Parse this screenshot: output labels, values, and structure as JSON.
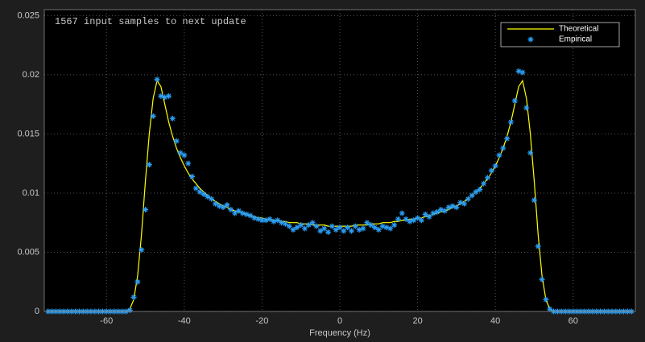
{
  "chart_data": {
    "type": "line",
    "annotation": "1567 input samples to next update",
    "xlabel": "Frequency (Hz)",
    "xlim": [
      -76,
      76
    ],
    "ylim": [
      0,
      0.0255
    ],
    "xticks": [
      -60,
      -40,
      -20,
      0,
      20,
      40,
      60
    ],
    "yticks": [
      0,
      0.005,
      0.01,
      0.015,
      0.02,
      0.025
    ],
    "grid": true,
    "legend": "northeast",
    "x": [
      -75,
      -74,
      -73,
      -72,
      -71,
      -70,
      -69,
      -68,
      -67,
      -66,
      -65,
      -64,
      -63,
      -62,
      -61,
      -60,
      -59,
      -58,
      -57,
      -56,
      -55,
      -54,
      -53,
      -52,
      -51,
      -50,
      -49,
      -48,
      -47,
      -46,
      -45,
      -44,
      -43,
      -42,
      -41,
      -40,
      -39,
      -38,
      -37,
      -36,
      -35,
      -34,
      -33,
      -32,
      -31,
      -30,
      -29,
      -28,
      -27,
      -26,
      -25,
      -24,
      -23,
      -22,
      -21,
      -20,
      -19,
      -18,
      -17,
      -16,
      -15,
      -14,
      -13,
      -12,
      -11,
      -10,
      -9,
      -8,
      -7,
      -6,
      -5,
      -4,
      -3,
      -2,
      -1,
      0,
      1,
      2,
      3,
      4,
      5,
      6,
      7,
      8,
      9,
      10,
      11,
      12,
      13,
      14,
      15,
      16,
      17,
      18,
      19,
      20,
      21,
      22,
      23,
      24,
      25,
      26,
      27,
      28,
      29,
      30,
      31,
      32,
      33,
      34,
      35,
      36,
      37,
      38,
      39,
      40,
      41,
      42,
      43,
      44,
      45,
      46,
      47,
      48,
      49,
      50,
      51,
      52,
      53,
      54,
      55,
      56,
      57,
      58,
      59,
      60,
      61,
      62,
      63,
      64,
      65,
      66,
      67,
      68,
      69,
      70,
      71,
      72,
      73,
      74,
      75
    ],
    "series": [
      {
        "name": "Theoretical",
        "color": "#ffff00",
        "style": "line",
        "values": [
          0,
          0,
          0,
          0,
          0,
          0,
          0,
          0,
          0,
          0,
          0,
          0,
          0,
          0,
          0,
          0,
          0,
          0,
          0,
          0,
          0,
          0.0002,
          0.001,
          0.003,
          0.0065,
          0.011,
          0.015,
          0.018,
          0.0195,
          0.019,
          0.0175,
          0.016,
          0.0148,
          0.0138,
          0.013,
          0.0123,
          0.0117,
          0.0112,
          0.0108,
          0.0104,
          0.0101,
          0.0098,
          0.0095,
          0.0093,
          0.0091,
          0.0089,
          0.0088,
          0.0086,
          0.0085,
          0.0084,
          0.0083,
          0.0082,
          0.0081,
          0.008,
          0.0079,
          0.0079,
          0.0078,
          0.0078,
          0.0077,
          0.0077,
          0.0076,
          0.0076,
          0.0075,
          0.0075,
          0.0075,
          0.0074,
          0.0074,
          0.0074,
          0.0073,
          0.0073,
          0.0073,
          0.0073,
          0.0072,
          0.0072,
          0.0072,
          0.0072,
          0.0072,
          0.0072,
          0.0072,
          0.0073,
          0.0073,
          0.0073,
          0.0073,
          0.0074,
          0.0074,
          0.0074,
          0.0075,
          0.0075,
          0.0075,
          0.0076,
          0.0076,
          0.0077,
          0.0077,
          0.0078,
          0.0078,
          0.0079,
          0.0079,
          0.008,
          0.0081,
          0.0082,
          0.0083,
          0.0084,
          0.0085,
          0.0086,
          0.0088,
          0.0089,
          0.0091,
          0.0093,
          0.0095,
          0.0098,
          0.0101,
          0.0104,
          0.0108,
          0.0112,
          0.0117,
          0.0123,
          0.013,
          0.0138,
          0.0148,
          0.016,
          0.0175,
          0.019,
          0.0195,
          0.018,
          0.015,
          0.011,
          0.0065,
          0.003,
          0.001,
          0.0002,
          0,
          0,
          0,
          0,
          0,
          0,
          0,
          0,
          0,
          0,
          0,
          0,
          0,
          0,
          0,
          0,
          0,
          0,
          0,
          0,
          0
        ]
      },
      {
        "name": "Empirical",
        "color": "#2a9df4",
        "style": "marker",
        "values": [
          0,
          0,
          0,
          0,
          0,
          0,
          0,
          0,
          0,
          0,
          0,
          0,
          0,
          0,
          0,
          0,
          0,
          0,
          0,
          0,
          0,
          0.0001,
          0.0012,
          0.0025,
          0.0052,
          0.0086,
          0.0124,
          0.0165,
          0.0196,
          0.0182,
          0.0181,
          0.0182,
          0.0163,
          0.0144,
          0.0134,
          0.0132,
          0.0125,
          0.0114,
          0.0104,
          0.0101,
          0.0099,
          0.0097,
          0.0095,
          0.0091,
          0.0089,
          0.0088,
          0.009,
          0.0086,
          0.0083,
          0.0085,
          0.0083,
          0.0082,
          0.0081,
          0.0079,
          0.0078,
          0.0077,
          0.0077,
          0.0078,
          0.0076,
          0.0077,
          0.0075,
          0.0074,
          0.0072,
          0.0069,
          0.0071,
          0.0073,
          0.007,
          0.0073,
          0.0075,
          0.0072,
          0.0068,
          0.007,
          0.0067,
          0.0072,
          0.0069,
          0.0071,
          0.0068,
          0.0071,
          0.0068,
          0.0072,
          0.0069,
          0.007,
          0.0075,
          0.0073,
          0.0071,
          0.0069,
          0.0072,
          0.0071,
          0.007,
          0.0073,
          0.0078,
          0.0083,
          0.0078,
          0.0076,
          0.0077,
          0.0079,
          0.0077,
          0.0082,
          0.008,
          0.0083,
          0.0084,
          0.0086,
          0.0085,
          0.0088,
          0.0089,
          0.0088,
          0.0092,
          0.0091,
          0.0095,
          0.0098,
          0.0101,
          0.0103,
          0.0108,
          0.0113,
          0.0119,
          0.0123,
          0.0132,
          0.0138,
          0.0146,
          0.016,
          0.0178,
          0.0203,
          0.0202,
          0.0172,
          0.0134,
          0.0094,
          0.0055,
          0.0027,
          0.001,
          0.0002,
          0,
          0,
          0,
          0,
          0,
          0,
          0,
          0,
          0,
          0,
          0,
          0,
          0,
          0,
          0,
          0,
          0,
          0,
          0,
          0,
          0
        ]
      }
    ]
  }
}
